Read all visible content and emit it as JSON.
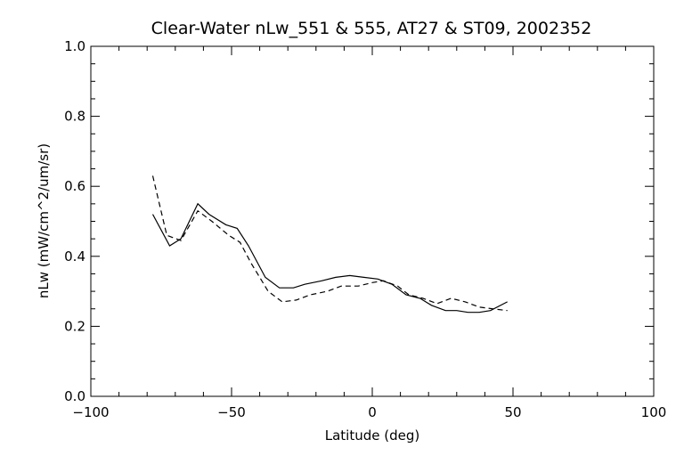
{
  "chart_data": {
    "type": "line",
    "title": "Clear-Water nLw_551 & 555, AT27 & ST09, 2002352",
    "xlabel": "Latitude (deg)",
    "ylabel": "nLw (mW/cm^2/um/sr)",
    "xlim": [
      -100,
      100
    ],
    "ylim": [
      0.0,
      1.0
    ],
    "x_ticks": [
      -100,
      -50,
      0,
      50,
      100
    ],
    "x_tick_labels": [
      "−100",
      "−50",
      "0",
      "50",
      "100"
    ],
    "y_ticks": [
      0.0,
      0.2,
      0.4,
      0.6,
      0.8,
      1.0
    ],
    "y_tick_labels": [
      "0.0",
      "0.2",
      "0.4",
      "0.6",
      "0.8",
      "1.0"
    ],
    "grid": false,
    "legend": "none",
    "series": [
      {
        "style": "solid",
        "color": "#000000",
        "x": [
          -78,
          -72,
          -68,
          -62,
          -58,
          -52,
          -48,
          -44,
          -38,
          -33,
          -28,
          -24,
          -18,
          -13,
          -8,
          -3,
          2,
          7,
          12,
          17,
          21,
          26,
          30,
          34,
          38,
          42,
          48
        ],
        "y": [
          0.52,
          0.43,
          0.45,
          0.55,
          0.52,
          0.49,
          0.48,
          0.43,
          0.34,
          0.31,
          0.31,
          0.32,
          0.33,
          0.34,
          0.345,
          0.34,
          0.335,
          0.32,
          0.29,
          0.28,
          0.26,
          0.245,
          0.245,
          0.24,
          0.24,
          0.245,
          0.27
        ]
      },
      {
        "style": "dashed",
        "color": "#000000",
        "x": [
          -78,
          -73,
          -68,
          -62,
          -57,
          -51,
          -47,
          -43,
          -37,
          -32,
          -27,
          -22,
          -16,
          -11,
          -5,
          0,
          4,
          9,
          13,
          18,
          23,
          28,
          33,
          38,
          43,
          48
        ],
        "y": [
          0.63,
          0.46,
          0.445,
          0.53,
          0.5,
          0.46,
          0.44,
          0.38,
          0.3,
          0.27,
          0.275,
          0.29,
          0.3,
          0.315,
          0.315,
          0.325,
          0.33,
          0.315,
          0.29,
          0.28,
          0.265,
          0.28,
          0.27,
          0.255,
          0.25,
          0.245
        ]
      }
    ]
  }
}
